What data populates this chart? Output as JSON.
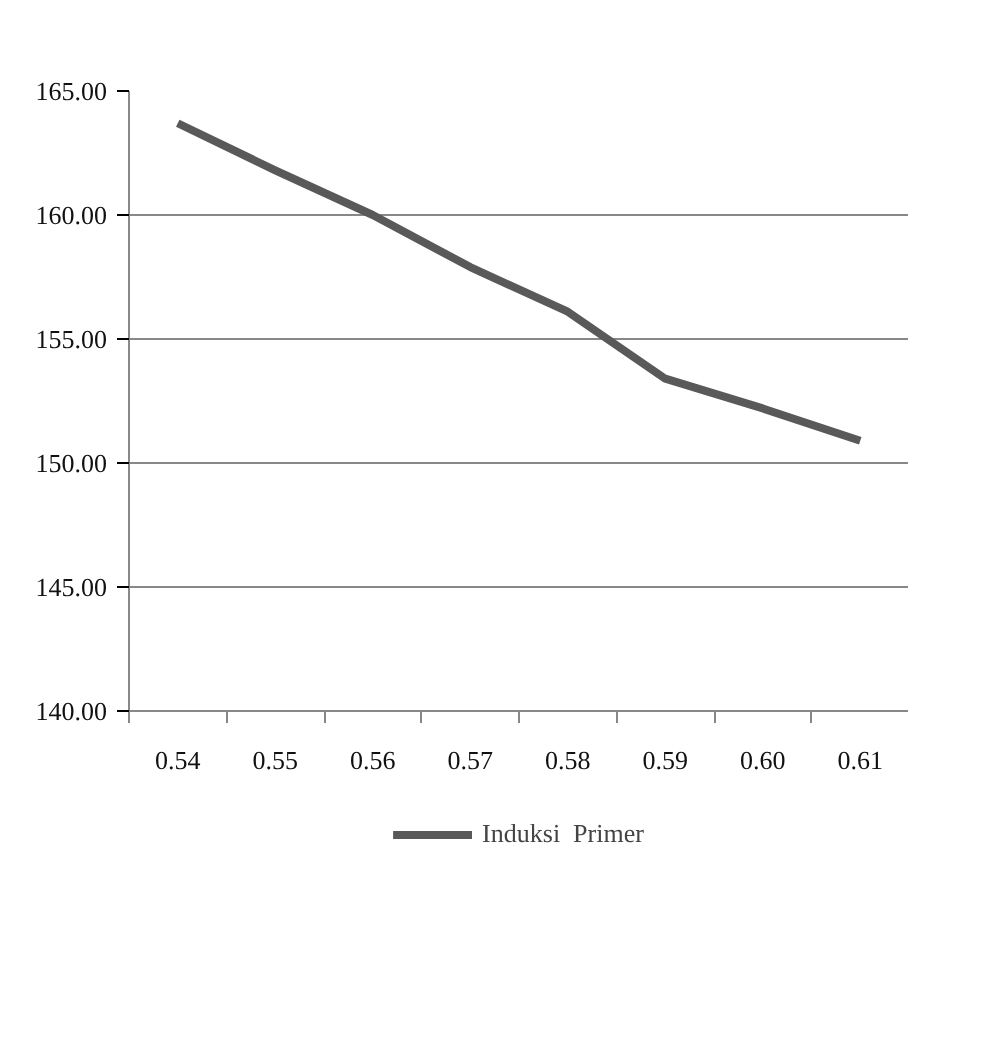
{
  "chart_data": {
    "type": "line",
    "categories": [
      "0.54",
      "0.55",
      "0.56",
      "0.57",
      "0.58",
      "0.59",
      "0.60",
      "0.61"
    ],
    "series": [
      {
        "name": "Induksi  Primer",
        "color": "#595959",
        "values": [
          163.7,
          161.8,
          160.0,
          157.9,
          156.1,
          153.4,
          152.2,
          150.9
        ]
      }
    ],
    "ylim": [
      140,
      165
    ],
    "yticks": [
      {
        "value": 140,
        "label": "140.00"
      },
      {
        "value": 145,
        "label": "145.00"
      },
      {
        "value": 150,
        "label": "150.00"
      },
      {
        "value": 155,
        "label": "155.00"
      },
      {
        "value": 160,
        "label": "160.00"
      },
      {
        "value": 165,
        "label": "165.00"
      }
    ],
    "grid": "y",
    "legend": "bottom",
    "marker": "none",
    "line_style": "solid"
  }
}
